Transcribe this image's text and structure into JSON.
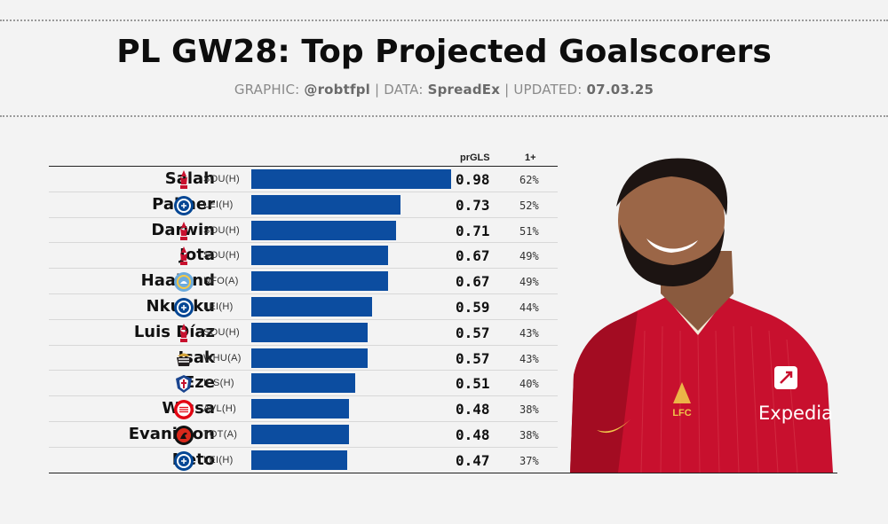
{
  "header": {
    "title": "PL GW28: Top Projected Goalscorers",
    "graphic_label": "GRAPHIC:",
    "graphic_value": "@robtfpl",
    "data_label": "DATA:",
    "data_value": "SpreadEx",
    "updated_label": "UPDATED:",
    "updated_value": "07.03.25",
    "sep": "|"
  },
  "columns": {
    "gls": "prGLS",
    "one": "1+"
  },
  "colors": {
    "bar": "#0c4da0",
    "background": "#f3f3f3",
    "liverpool": "#c8102e",
    "chelsea": "#034694",
    "city": "#6cabdd",
    "newcastle": "#241f20",
    "palace": "#1b458f",
    "brentford": "#e30613",
    "bournemouth": "#da291c"
  },
  "photo": {
    "sponsor": "Expedia",
    "crest_text": "LFC"
  },
  "chart_data": {
    "type": "bar",
    "orientation": "horizontal",
    "xlim": [
      0,
      1
    ],
    "categories": [
      "Salah",
      "Palmer",
      "Darwin",
      "Jota",
      "Haaland",
      "Nkunku",
      "Luis Díaz",
      "Isak",
      "Eze",
      "Wissa",
      "Evanilson",
      "Neto"
    ],
    "values": [
      0.98,
      0.73,
      0.71,
      0.67,
      0.67,
      0.59,
      0.57,
      0.57,
      0.51,
      0.48,
      0.48,
      0.47
    ],
    "rows": [
      {
        "name": "Salah",
        "club": "liverpool",
        "fixture": "SOU(H)",
        "gls": "0.98",
        "pct": "62%"
      },
      {
        "name": "Palmer",
        "club": "chelsea",
        "fixture": "LEI(H)",
        "gls": "0.73",
        "pct": "52%"
      },
      {
        "name": "Darwin",
        "club": "liverpool",
        "fixture": "SOU(H)",
        "gls": "0.71",
        "pct": "51%"
      },
      {
        "name": "Jota",
        "club": "liverpool",
        "fixture": "SOU(H)",
        "gls": "0.67",
        "pct": "49%"
      },
      {
        "name": "Haaland",
        "club": "city",
        "fixture": "NFO(A)",
        "gls": "0.67",
        "pct": "49%"
      },
      {
        "name": "Nkunku",
        "club": "chelsea",
        "fixture": "LEI(H)",
        "gls": "0.59",
        "pct": "44%"
      },
      {
        "name": "Luis Díaz",
        "club": "liverpool",
        "fixture": "SOU(H)",
        "gls": "0.57",
        "pct": "43%"
      },
      {
        "name": "Isak",
        "club": "newcastle",
        "fixture": "WHU(A)",
        "gls": "0.57",
        "pct": "43%"
      },
      {
        "name": "Eze",
        "club": "palace",
        "fixture": "IPS(H)",
        "gls": "0.51",
        "pct": "40%"
      },
      {
        "name": "Wissa",
        "club": "brentford",
        "fixture": "AVL(H)",
        "gls": "0.48",
        "pct": "38%"
      },
      {
        "name": "Evanilson",
        "club": "bournemouth",
        "fixture": "TOT(A)",
        "gls": "0.48",
        "pct": "38%"
      },
      {
        "name": "Neto",
        "club": "chelsea",
        "fixture": "LEI(H)",
        "gls": "0.47",
        "pct": "37%"
      }
    ]
  }
}
